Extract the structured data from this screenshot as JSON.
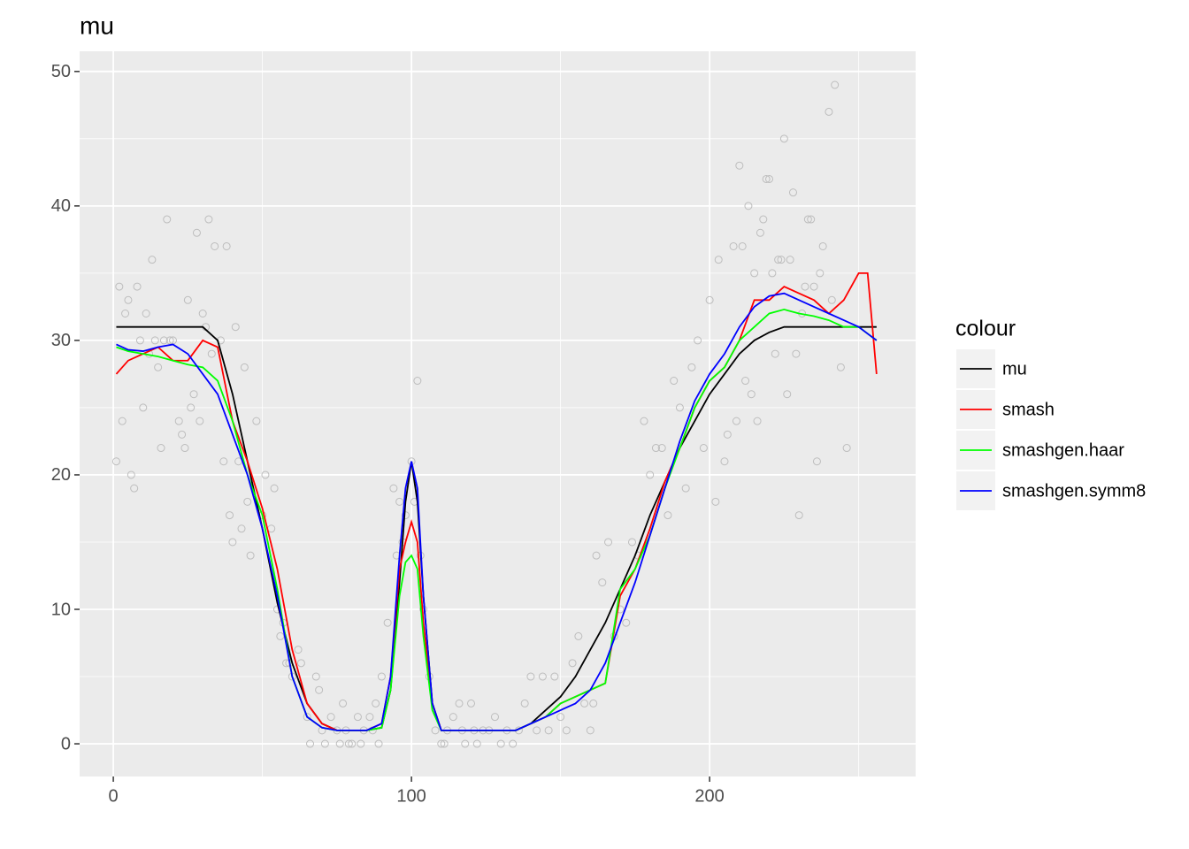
{
  "chart_data": {
    "type": "line",
    "title": "mu",
    "x": [
      1,
      5,
      10,
      15,
      20,
      25,
      30,
      35,
      40,
      45,
      50,
      55,
      60,
      65,
      70,
      75,
      80,
      85,
      90,
      93,
      96,
      98,
      100,
      102,
      104,
      107,
      110,
      115,
      120,
      125,
      130,
      135,
      140,
      145,
      150,
      155,
      160,
      165,
      170,
      175,
      180,
      185,
      190,
      195,
      200,
      205,
      210,
      215,
      220,
      225,
      230,
      235,
      240,
      245,
      250,
      253,
      256
    ],
    "series": [
      {
        "name": "mu",
        "color": "#000000",
        "values": [
          31,
          31,
          31,
          31,
          31,
          31,
          31,
          30,
          26,
          21,
          16,
          10.5,
          6,
          3,
          1.5,
          1,
          1,
          1,
          1.2,
          4,
          12,
          18,
          21,
          18,
          11,
          3,
          1,
          1,
          1,
          1,
          1,
          1,
          1.5,
          2.5,
          3.5,
          5,
          7,
          9,
          11.5,
          14,
          17,
          19.5,
          22,
          24,
          26,
          27.5,
          29,
          30,
          30.6,
          31,
          31,
          31,
          31,
          31,
          31,
          31,
          31
        ]
      },
      {
        "name": "smash",
        "color": "#ff0000",
        "values": [
          27.5,
          28.5,
          29,
          29.5,
          28.5,
          28.5,
          30,
          29.5,
          24,
          21,
          17.5,
          13,
          7,
          3,
          1.5,
          1,
          1,
          1,
          1.5,
          5,
          13,
          15,
          16.5,
          15,
          9,
          3,
          1,
          1,
          1,
          1,
          1,
          1,
          1.5,
          2,
          3,
          3.5,
          4,
          4.5,
          11,
          13,
          16,
          19.5,
          22,
          25,
          27,
          28,
          30,
          33,
          33,
          34,
          33.5,
          33,
          32,
          33,
          35,
          35,
          27.5
        ]
      },
      {
        "name": "smashgen.haar",
        "color": "#00ff00",
        "values": [
          29.5,
          29.2,
          29,
          28.8,
          28.5,
          28.2,
          28,
          27,
          24,
          20,
          17,
          11.5,
          5,
          2,
          1.2,
          1,
          1,
          1,
          1.2,
          4,
          11,
          13.5,
          14,
          13,
          8,
          2.5,
          1,
          1,
          1,
          1,
          1,
          1,
          1.5,
          2,
          3,
          3.5,
          4,
          4.5,
          11.5,
          13,
          15.5,
          19,
          22,
          25,
          27,
          28,
          30,
          31,
          32,
          32.3,
          32,
          31.8,
          31.5,
          31,
          31,
          30.5,
          30
        ]
      },
      {
        "name": "smashgen.symm8",
        "color": "#0000ff",
        "values": [
          29.7,
          29.3,
          29.2,
          29.5,
          29.7,
          29,
          27.5,
          26,
          23,
          20,
          16,
          11,
          5,
          2,
          1.2,
          1,
          1,
          1,
          1.5,
          5,
          14,
          19,
          21,
          19,
          11,
          3,
          1,
          1,
          1,
          1,
          1,
          1,
          1.5,
          2,
          2.5,
          3,
          4,
          6,
          9,
          12,
          15.5,
          19,
          22.5,
          25.5,
          27.5,
          29,
          31,
          32.5,
          33.3,
          33.5,
          33,
          32.5,
          32,
          31.5,
          31,
          30.5,
          30
        ]
      }
    ],
    "points": {
      "color": "#bdbdbd",
      "x": [
        1,
        2,
        3,
        4,
        5,
        6,
        7,
        8,
        9,
        10,
        11,
        12,
        13,
        14,
        15,
        16,
        17,
        18,
        19,
        20,
        22,
        23,
        24,
        25,
        26,
        27,
        28,
        29,
        30,
        31,
        32,
        33,
        34,
        36,
        37,
        38,
        39,
        40,
        41,
        42,
        43,
        44,
        45,
        46,
        48,
        50,
        51,
        53,
        54,
        55,
        56,
        57,
        58,
        59,
        60,
        62,
        63,
        65,
        66,
        68,
        69,
        70,
        71,
        73,
        75,
        76,
        77,
        78,
        79,
        80,
        82,
        83,
        84,
        86,
        87,
        88,
        89,
        90,
        92,
        94,
        95,
        96,
        97,
        98,
        100,
        101,
        102,
        103,
        104,
        106,
        108,
        110,
        111,
        112,
        114,
        116,
        117,
        118,
        120,
        121,
        122,
        124,
        126,
        128,
        130,
        132,
        134,
        136,
        138,
        140,
        142,
        144,
        146,
        148,
        150,
        152,
        154,
        156,
        158,
        160,
        161,
        162,
        164,
        166,
        168,
        170,
        172,
        174,
        176,
        178,
        180,
        182,
        184,
        186,
        188,
        190,
        192,
        194,
        196,
        198,
        200,
        202,
        203,
        205,
        206,
        208,
        209,
        210,
        211,
        212,
        213,
        214,
        215,
        216,
        217,
        218,
        219,
        220,
        221,
        222,
        223,
        224,
        225,
        226,
        227,
        228,
        229,
        230,
        231,
        232,
        233,
        234,
        235,
        236,
        237,
        238,
        240,
        241,
        242,
        244,
        246
      ],
      "y": [
        21,
        34,
        24,
        32,
        33,
        20,
        19,
        34,
        30,
        25,
        32,
        29,
        36,
        30,
        28,
        22,
        30,
        39,
        30,
        30,
        24,
        23,
        22,
        33,
        25,
        26,
        38,
        24,
        32,
        31,
        39,
        29,
        37,
        30,
        21,
        37,
        17,
        15,
        31,
        21,
        16,
        28,
        18,
        14,
        24,
        17,
        20,
        16,
        19,
        10,
        8,
        9,
        6,
        6,
        5,
        7,
        6,
        2,
        0,
        5,
        4,
        1,
        0,
        2,
        1,
        0,
        3,
        1,
        0,
        0,
        2,
        0,
        1,
        2,
        1,
        3,
        0,
        5,
        9,
        19,
        14,
        18,
        15,
        17,
        21,
        18,
        27,
        14,
        10,
        5,
        1,
        0,
        0,
        1,
        2,
        3,
        1,
        0,
        3,
        1,
        0,
        1,
        1,
        2,
        0,
        1,
        0,
        1,
        3,
        5,
        1,
        5,
        1,
        5,
        2,
        1,
        6,
        8,
        3,
        1,
        3,
        14,
        12,
        15,
        8,
        10,
        9,
        15,
        14,
        24,
        20,
        22,
        22,
        17,
        27,
        25,
        19,
        28,
        30,
        22,
        33,
        18,
        36,
        21,
        23,
        37,
        24,
        43,
        37,
        27,
        40,
        26,
        35,
        24,
        38,
        39,
        42,
        42,
        35,
        29,
        36,
        36,
        45,
        26,
        36,
        41,
        29,
        17,
        32,
        34,
        39,
        39,
        34,
        21,
        35,
        37,
        47,
        33,
        49,
        28,
        22
      ]
    },
    "xlim": [
      -11.3,
      269.1
    ],
    "ylim": [
      -2.43,
      51.5
    ],
    "xticks": [
      0,
      100,
      200
    ],
    "yticks": [
      0,
      10,
      20,
      30,
      40,
      50
    ],
    "x_minor_breaks": [
      50,
      150,
      250
    ],
    "y_minor_breaks": [
      5,
      15,
      25,
      35,
      45
    ],
    "grid": true,
    "legend_title": "colour",
    "legend_position": "right"
  }
}
